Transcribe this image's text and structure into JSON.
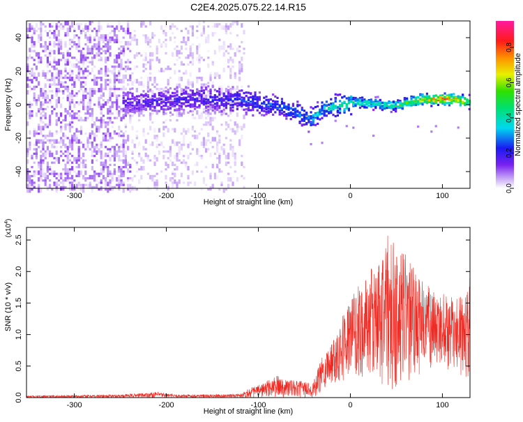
{
  "title": "C2E4.2025.075.22.14.R15",
  "colors": {
    "snr_line": "#ee2a22",
    "spectrogram_base": "#7a2cf5",
    "frame": "#000000"
  },
  "chart_data": [
    {
      "type": "heatmap",
      "title": "C2E4.2025.075.22.14.R15",
      "xlabel": "Height of straight line (km)",
      "ylabel": "Frequency (Hz)",
      "xlim": [
        -352,
        130
      ],
      "ylim": [
        -50,
        50
      ],
      "x_ticks": [
        -300,
        -200,
        -100,
        0,
        100
      ],
      "y_ticks": [
        -40,
        -20,
        0,
        20,
        40
      ],
      "colorbar": {
        "label": "Normalized spectral amplitude",
        "range": [
          0.0,
          0.95
        ],
        "ticks": [
          0.0,
          0.2,
          0.4,
          0.6,
          0.8
        ],
        "colormap": "rainbow (white → violet → blue → cyan → green → yellow → orange → red → magenta)"
      },
      "ridge": {
        "description": "Dominant spectral ridge near 0–5 Hz; diffuse broadband noise at low heights",
        "centers_hz": [
          [
            -240,
            2
          ],
          [
            -200,
            3
          ],
          [
            -160,
            4
          ],
          [
            -120,
            3
          ],
          [
            -80,
            0
          ],
          [
            -60,
            -4
          ],
          [
            -45,
            -8
          ],
          [
            -30,
            -2
          ],
          [
            -10,
            1
          ],
          [
            10,
            2
          ],
          [
            30,
            1
          ],
          [
            50,
            0
          ],
          [
            70,
            3
          ],
          [
            90,
            4
          ],
          [
            110,
            4
          ],
          [
            130,
            2
          ]
        ],
        "peak_amplitude": [
          [
            -240,
            0.2
          ],
          [
            -150,
            0.25
          ],
          [
            -100,
            0.3
          ],
          [
            -60,
            0.35
          ],
          [
            -20,
            0.45
          ],
          [
            0,
            0.55
          ],
          [
            30,
            0.5
          ],
          [
            60,
            0.6
          ],
          [
            80,
            0.8
          ],
          [
            100,
            0.95
          ],
          [
            120,
            0.8
          ],
          [
            130,
            0.7
          ]
        ],
        "noise_extent": {
          "diffuse_full_band_until_km": -115,
          "spread_hz_at_-100": 15,
          "spread_hz_at_100": 5
        }
      }
    },
    {
      "type": "line",
      "xlabel": "Height of straight line (km)",
      "ylabel": "SNR (10 * v/v)",
      "y_multiplier": "(x10^4)",
      "xlim": [
        -352,
        130
      ],
      "ylim": [
        0,
        2.7
      ],
      "x_ticks": [
        -300,
        -200,
        -100,
        0,
        100
      ],
      "y_ticks": [
        0.0,
        0.5,
        1.0,
        1.5,
        2.0,
        2.5
      ],
      "series": [
        {
          "envelope_max": [
            [
              -350,
              0.03
            ],
            [
              -300,
              0.04
            ],
            [
              -250,
              0.05
            ],
            [
              -210,
              0.09
            ],
            [
              -190,
              0.05
            ],
            [
              -150,
              0.05
            ],
            [
              -120,
              0.06
            ],
            [
              -110,
              0.15
            ],
            [
              -100,
              0.2
            ],
            [
              -80,
              0.35
            ],
            [
              -60,
              0.27
            ],
            [
              -40,
              0.25
            ],
            [
              -30,
              0.7
            ],
            [
              -20,
              0.9
            ],
            [
              -10,
              1.3
            ],
            [
              0,
              1.6
            ],
            [
              15,
              1.9
            ],
            [
              30,
              2.2
            ],
            [
              40,
              2.6
            ],
            [
              50,
              2.4
            ],
            [
              60,
              2.3
            ],
            [
              75,
              1.9
            ],
            [
              90,
              1.7
            ],
            [
              110,
              1.6
            ],
            [
              125,
              1.6
            ],
            [
              130,
              2.2
            ]
          ],
          "envelope_min": [
            [
              -350,
              0.0
            ],
            [
              -100,
              0.0
            ],
            [
              -35,
              0.0
            ],
            [
              -25,
              0.2
            ],
            [
              0,
              0.3
            ],
            [
              20,
              0.3
            ],
            [
              40,
              0.1
            ],
            [
              60,
              0.2
            ],
            [
              80,
              0.4
            ],
            [
              100,
              0.5
            ],
            [
              120,
              0.3
            ],
            [
              130,
              0.3
            ]
          ]
        }
      ]
    }
  ]
}
